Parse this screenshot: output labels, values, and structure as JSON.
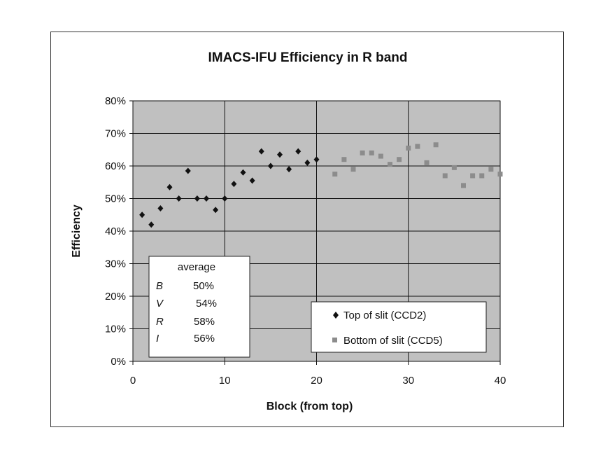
{
  "chart_data": {
    "type": "scatter",
    "title": "IMACS-IFU Efficiency in R band",
    "xlabel": "Block (from top)",
    "ylabel": "Efficiency",
    "xlim": [
      0,
      40
    ],
    "ylim": [
      0,
      80
    ],
    "x_ticks": [
      "0",
      "10",
      "20",
      "30",
      "40"
    ],
    "y_ticks": [
      "0%",
      "10%",
      "20%",
      "30%",
      "40%",
      "50%",
      "60%",
      "70%",
      "80%"
    ],
    "grid": true,
    "legend_position": "bottom-right",
    "series": [
      {
        "name": "Top of slit (CCD2)",
        "color": "#111111",
        "marker": "diamond",
        "x": [
          1,
          2,
          3,
          4,
          5,
          6,
          7,
          8,
          9,
          10,
          11,
          12,
          13,
          14,
          15,
          16,
          17,
          18,
          19,
          20
        ],
        "y": [
          45,
          42,
          47,
          53.5,
          50,
          58.5,
          50,
          50,
          46.5,
          50,
          54.5,
          58,
          55.5,
          64.5,
          60,
          63.5,
          59,
          64.5,
          61,
          62
        ]
      },
      {
        "name": "Bottom of slit (CCD5)",
        "color": "#8c8c8c",
        "marker": "square",
        "x": [
          22,
          23,
          24,
          25,
          26,
          27,
          28,
          29,
          30,
          31,
          32,
          33,
          34,
          35,
          36,
          37,
          38,
          39,
          40
        ],
        "y": [
          57.5,
          62,
          59,
          64,
          64,
          63,
          60.5,
          62,
          65.5,
          66,
          61,
          66.5,
          57,
          59.5,
          54,
          57,
          57,
          59,
          57.5
        ]
      }
    ],
    "averages_box": {
      "header": "average",
      "rows": [
        {
          "band": "B",
          "value": "50%"
        },
        {
          "band": "V",
          "value": "54%"
        },
        {
          "band": "R",
          "value": "58%"
        },
        {
          "band": "I",
          "value": "56%"
        }
      ]
    }
  }
}
